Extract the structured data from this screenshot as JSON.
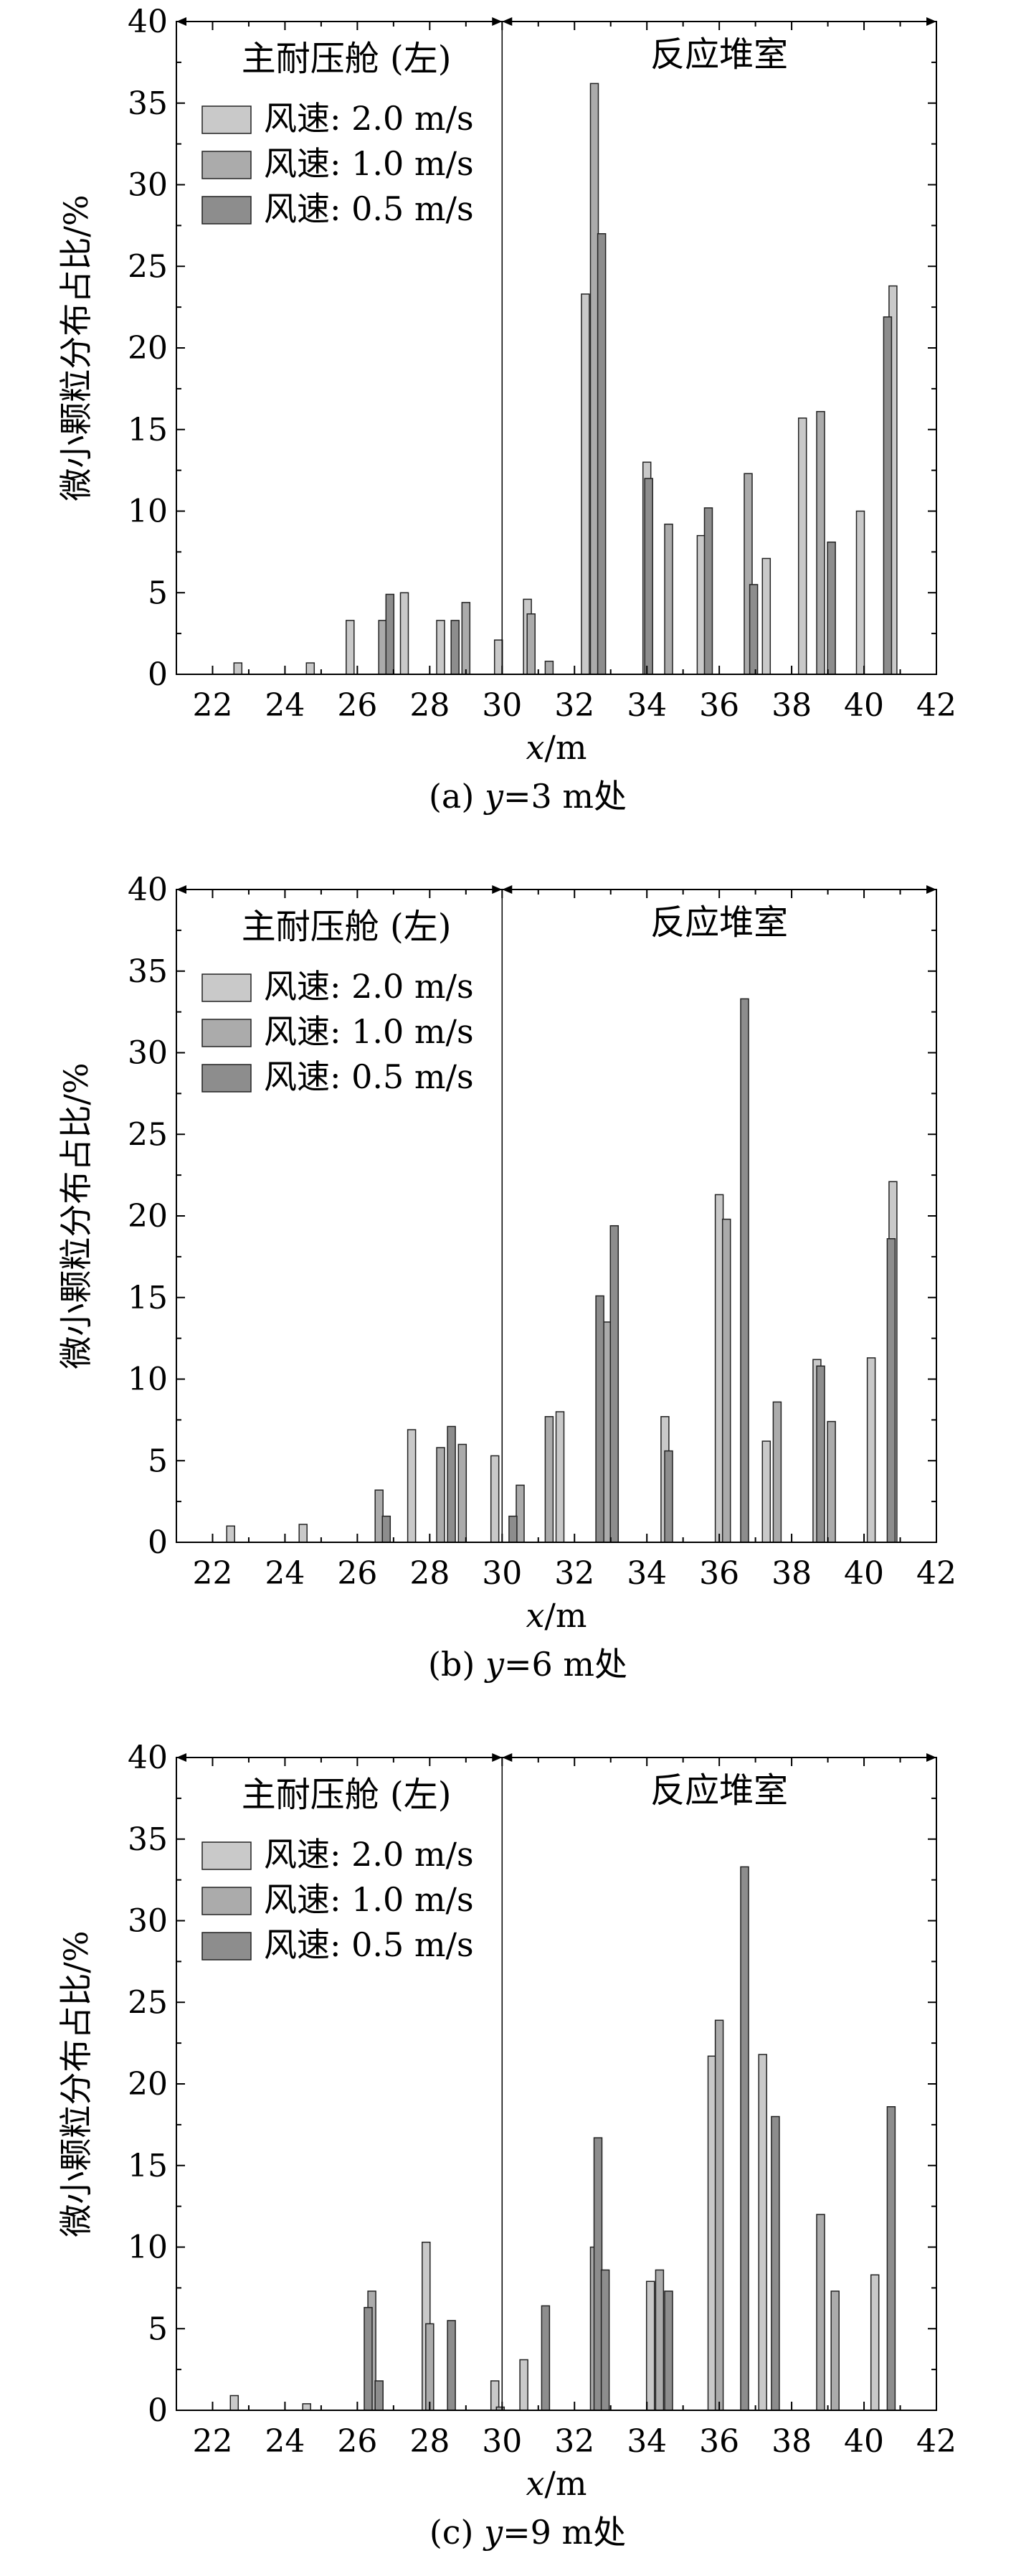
{
  "legend": {
    "labels": [
      "风速: 2.0 m/s",
      "风速: 1.0 m/s",
      "风速: 0.5 m/s"
    ],
    "colors": [
      "#c9c9c9",
      "#ababab",
      "#8d8d8d"
    ]
  },
  "chart_data": [
    {
      "type": "bar",
      "caption_prefix": "(a) ",
      "caption_var": "y",
      "caption_rest": "=3 m处",
      "ylabel": "微小颗粒分布占比/%",
      "xlabel_var": "x",
      "xlabel_unit": "/m",
      "xlim": [
        21,
        42
      ],
      "ylim": [
        0,
        40
      ],
      "xticks": [
        22,
        24,
        26,
        28,
        30,
        32,
        34,
        36,
        38,
        40,
        42
      ],
      "yticks": [
        0,
        5,
        10,
        15,
        20,
        25,
        30,
        35,
        40
      ],
      "regions": [
        "主耐压舱 (左)",
        "反应堆室"
      ],
      "region_boundary_x": 30,
      "series": [
        {
          "name": "风速: 2.0 m/s",
          "points": [
            [
              22.7,
              0.7
            ],
            [
              24.7,
              0.7
            ],
            [
              25.8,
              3.3
            ],
            [
              27.3,
              5.0
            ],
            [
              28.3,
              3.3
            ],
            [
              29.9,
              2.1
            ],
            [
              30.7,
              4.6
            ],
            [
              32.3,
              23.3
            ],
            [
              34.0,
              13.0
            ],
            [
              35.5,
              8.5
            ],
            [
              37.3,
              7.1
            ],
            [
              38.3,
              15.7
            ],
            [
              39.9,
              10.0
            ],
            [
              40.8,
              23.8
            ]
          ]
        },
        {
          "name": "风速: 1.0 m/s",
          "points": [
            [
              26.7,
              3.3
            ],
            [
              29.0,
              4.4
            ],
            [
              30.8,
              3.7
            ],
            [
              31.3,
              0.8
            ],
            [
              32.55,
              36.2
            ],
            [
              34.6,
              9.2
            ],
            [
              36.8,
              12.3
            ],
            [
              38.8,
              16.1
            ]
          ]
        },
        {
          "name": "风速: 0.5 m/s",
          "points": [
            [
              26.9,
              4.9
            ],
            [
              28.7,
              3.3
            ],
            [
              32.75,
              27.0
            ],
            [
              34.05,
              12.0
            ],
            [
              35.7,
              10.2
            ],
            [
              36.95,
              5.5
            ],
            [
              39.1,
              8.1
            ],
            [
              40.65,
              21.9
            ]
          ]
        }
      ]
    },
    {
      "type": "bar",
      "caption_prefix": "(b) ",
      "caption_var": "y",
      "caption_rest": "=6 m处",
      "ylabel": "微小颗粒分布占比/%",
      "xlabel_var": "x",
      "xlabel_unit": "/m",
      "xlim": [
        21,
        42
      ],
      "ylim": [
        0,
        40
      ],
      "xticks": [
        22,
        24,
        26,
        28,
        30,
        32,
        34,
        36,
        38,
        40,
        42
      ],
      "yticks": [
        0,
        5,
        10,
        15,
        20,
        25,
        30,
        35,
        40
      ],
      "regions": [
        "主耐压舱 (左)",
        "反应堆室"
      ],
      "region_boundary_x": 30,
      "series": [
        {
          "name": "风速: 2.0 m/s",
          "points": [
            [
              22.5,
              1.0
            ],
            [
              24.5,
              1.1
            ],
            [
              27.5,
              6.9
            ],
            [
              29.8,
              5.3
            ],
            [
              31.6,
              8.0
            ],
            [
              34.5,
              7.7
            ],
            [
              36.0,
              21.3
            ],
            [
              37.3,
              6.2
            ],
            [
              38.7,
              11.2
            ],
            [
              40.2,
              11.3
            ],
            [
              40.8,
              22.1
            ]
          ]
        },
        {
          "name": "风速: 1.0 m/s",
          "points": [
            [
              26.6,
              3.2
            ],
            [
              28.3,
              5.8
            ],
            [
              28.9,
              6.0
            ],
            [
              30.5,
              3.5
            ],
            [
              31.3,
              7.7
            ],
            [
              32.9,
              13.5
            ],
            [
              36.2,
              19.8
            ],
            [
              37.6,
              8.6
            ],
            [
              39.1,
              7.4
            ]
          ]
        },
        {
          "name": "风速: 0.5 m/s",
          "points": [
            [
              26.8,
              1.6
            ],
            [
              28.6,
              7.1
            ],
            [
              30.3,
              1.6
            ],
            [
              32.7,
              15.1
            ],
            [
              33.1,
              19.4
            ],
            [
              34.6,
              5.6
            ],
            [
              36.7,
              33.3
            ],
            [
              38.8,
              10.8
            ],
            [
              40.75,
              18.6
            ]
          ]
        }
      ]
    },
    {
      "type": "bar",
      "caption_prefix": "(c) ",
      "caption_var": "y",
      "caption_rest": "=9 m处",
      "ylabel": "微小颗粒分布占比/%",
      "xlabel_var": "x",
      "xlabel_unit": "/m",
      "xlim": [
        21,
        42
      ],
      "ylim": [
        0,
        40
      ],
      "xticks": [
        22,
        24,
        26,
        28,
        30,
        32,
        34,
        36,
        38,
        40,
        42
      ],
      "yticks": [
        0,
        5,
        10,
        15,
        20,
        25,
        30,
        35,
        40
      ],
      "regions": [
        "主耐压舱 (左)",
        "反应堆室"
      ],
      "region_boundary_x": 30,
      "series": [
        {
          "name": "风速: 2.0 m/s",
          "points": [
            [
              22.6,
              0.9
            ],
            [
              24.6,
              0.4
            ],
            [
              27.9,
              10.3
            ],
            [
              29.8,
              1.8
            ],
            [
              30.6,
              3.1
            ],
            [
              34.1,
              7.9
            ],
            [
              35.8,
              21.7
            ],
            [
              37.2,
              21.8
            ],
            [
              40.3,
              8.3
            ]
          ]
        },
        {
          "name": "风速: 1.0 m/s",
          "points": [
            [
              26.4,
              7.3
            ],
            [
              28.0,
              5.3
            ],
            [
              29.95,
              0.2
            ],
            [
              32.55,
              10.0
            ],
            [
              34.35,
              8.6
            ],
            [
              36.0,
              23.9
            ],
            [
              38.8,
              12.0
            ],
            [
              39.2,
              7.3
            ]
          ]
        },
        {
          "name": "风速: 0.5 m/s",
          "points": [
            [
              26.3,
              6.3
            ],
            [
              26.6,
              1.8
            ],
            [
              28.6,
              5.5
            ],
            [
              31.2,
              6.4
            ],
            [
              32.65,
              16.7
            ],
            [
              32.85,
              8.6
            ],
            [
              34.6,
              7.3
            ],
            [
              36.7,
              33.3
            ],
            [
              37.55,
              18.0
            ],
            [
              40.75,
              18.6
            ]
          ]
        }
      ]
    }
  ]
}
